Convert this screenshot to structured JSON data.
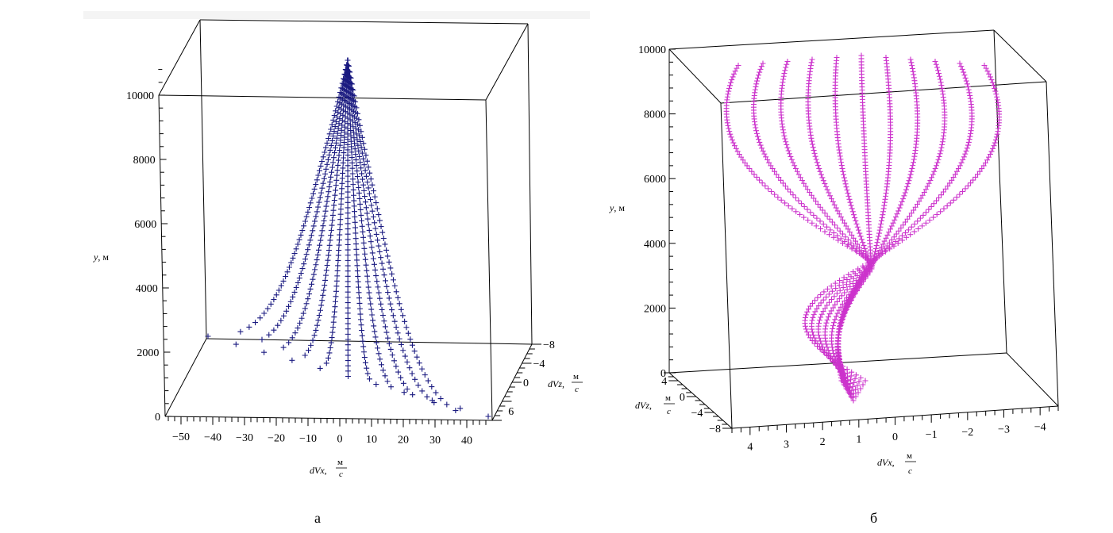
{
  "chart_data": [
    {
      "type": "scatter",
      "panel": "а",
      "caption": "а",
      "marker": "+",
      "marker_color": "#1a1a80",
      "ylabel_var": "y",
      "ylabel_unit": "м",
      "xlabel_var": "dVx",
      "zlabel_var": "dVz",
      "unit_num": "м",
      "unit_den": "c",
      "y_ticks": [
        0,
        2000,
        4000,
        6000,
        8000,
        10000
      ],
      "x_ticks": [
        -50,
        -40,
        -30,
        -20,
        -10,
        0,
        10,
        20,
        30,
        40
      ],
      "z_ticks": [
        -8,
        -4,
        0,
        6
      ],
      "ylim": [
        0,
        11000
      ],
      "xlim": [
        -55,
        48
      ],
      "zlim": [
        -8,
        8
      ],
      "series_description": "11 trajectories converging from dVx spread at y=0 to dVx≈0 above y≈5000 m up to ≈11000 m",
      "series": [
        {
          "dVx_start": -50,
          "dVx_end": 0,
          "y_range": [
            2000,
            11000
          ]
        },
        {
          "dVx_start": -40,
          "dVx_end": 0,
          "y_range": [
            1800,
            11000
          ]
        },
        {
          "dVx_start": -30,
          "dVx_end": 0,
          "y_range": [
            1600,
            11000
          ]
        },
        {
          "dVx_start": -20,
          "dVx_end": 0,
          "y_range": [
            1400,
            11000
          ]
        },
        {
          "dVx_start": -10,
          "dVx_end": 0,
          "y_range": [
            1200,
            11000
          ]
        },
        {
          "dVx_start": 0,
          "dVx_end": 0,
          "y_range": [
            900,
            11000
          ]
        },
        {
          "dVx_start": 10,
          "dVx_end": 0,
          "y_range": [
            700,
            11000
          ]
        },
        {
          "dVx_start": 20,
          "dVx_end": 0,
          "y_range": [
            500,
            11000
          ]
        },
        {
          "dVx_start": 30,
          "dVx_end": 0,
          "y_range": [
            300,
            11000
          ]
        },
        {
          "dVx_start": 40,
          "dVx_end": 0,
          "y_range": [
            150,
            11000
          ]
        },
        {
          "dVx_start": 45,
          "dVx_end": 0,
          "y_range": [
            50,
            11000
          ]
        }
      ]
    },
    {
      "type": "scatter",
      "panel": "б",
      "caption": "б",
      "marker": "+",
      "marker_color": "#cc33cc",
      "ylabel_var": "y",
      "ylabel_unit": "м",
      "xlabel_var": "dVx",
      "zlabel_var": "dVz",
      "unit_num": "м",
      "unit_den": "c",
      "y_ticks": [
        0,
        2000,
        4000,
        6000,
        8000,
        10000
      ],
      "x_ticks": [
        4,
        3,
        2,
        1,
        0,
        -1,
        -2,
        -3,
        -4
      ],
      "z_ticks": [
        4,
        0,
        -4,
        -8
      ],
      "ylim": [
        0,
        10000
      ],
      "xlim": [
        -4.5,
        4.5
      ],
      "zlim": [
        -8,
        6
      ],
      "series_description": "11 S-shaped trajectories crossing near y≈2500 m, spreading at top (y≈10000) and bottom (y≈500)",
      "series": [
        {
          "offset": -5
        },
        {
          "offset": -4
        },
        {
          "offset": -3
        },
        {
          "offset": -2
        },
        {
          "offset": -1
        },
        {
          "offset": 0
        },
        {
          "offset": 1
        },
        {
          "offset": 2
        },
        {
          "offset": 3
        },
        {
          "offset": 4
        },
        {
          "offset": 5
        }
      ]
    }
  ],
  "captions": {
    "left": "а",
    "right": "б"
  }
}
